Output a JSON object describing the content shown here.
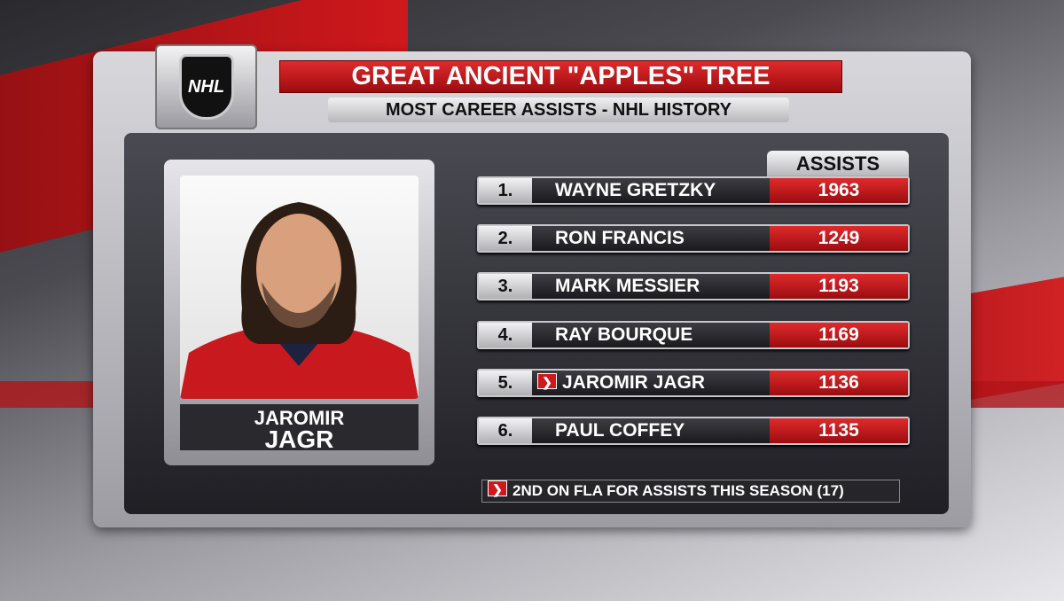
{
  "logo": "NHL",
  "header": {
    "title": "GREAT ANCIENT \"APPLES\" TREE",
    "subtitle": "MOST CAREER ASSISTS - NHL HISTORY"
  },
  "player": {
    "first_name": "JAROMIR",
    "last_name": "JAGR"
  },
  "table": {
    "column": "ASSISTS",
    "rows": [
      {
        "rank": "1.",
        "name": "WAYNE GRETZKY",
        "assists": 1963
      },
      {
        "rank": "2.",
        "name": "RON FRANCIS",
        "assists": 1249
      },
      {
        "rank": "3.",
        "name": "MARK MESSIER",
        "assists": 1193
      },
      {
        "rank": "4.",
        "name": "RAY BOURQUE",
        "assists": 1169
      },
      {
        "rank": "5.",
        "name": "JAROMIR JAGR",
        "assists": 1136
      },
      {
        "rank": "6.",
        "name": "PAUL COFFEY",
        "assists": 1135
      }
    ]
  },
  "note": "2ND ON FLA FOR ASSISTS THIS SEASON (17)"
}
